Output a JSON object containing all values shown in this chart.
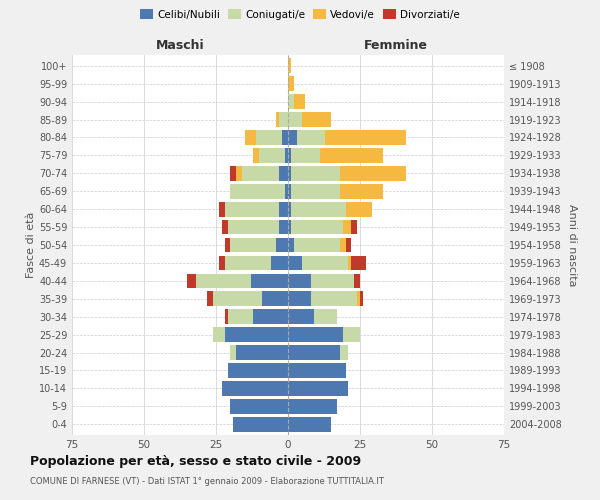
{
  "age_groups": [
    "0-4",
    "5-9",
    "10-14",
    "15-19",
    "20-24",
    "25-29",
    "30-34",
    "35-39",
    "40-44",
    "45-49",
    "50-54",
    "55-59",
    "60-64",
    "65-69",
    "70-74",
    "75-79",
    "80-84",
    "85-89",
    "90-94",
    "95-99",
    "100+"
  ],
  "birth_years": [
    "2004-2008",
    "1999-2003",
    "1994-1998",
    "1989-1993",
    "1984-1988",
    "1979-1983",
    "1974-1978",
    "1969-1973",
    "1964-1968",
    "1959-1963",
    "1954-1958",
    "1949-1953",
    "1944-1948",
    "1939-1943",
    "1934-1938",
    "1929-1933",
    "1924-1928",
    "1919-1923",
    "1914-1918",
    "1909-1913",
    "≤ 1908"
  ],
  "maschi": {
    "celibi": [
      19,
      20,
      23,
      21,
      18,
      22,
      12,
      9,
      13,
      6,
      4,
      3,
      3,
      1,
      3,
      1,
      2,
      0,
      0,
      0,
      0
    ],
    "coniugati": [
      0,
      0,
      0,
      0,
      2,
      4,
      9,
      17,
      19,
      16,
      16,
      18,
      19,
      19,
      13,
      9,
      9,
      3,
      0,
      0,
      0
    ],
    "vedovi": [
      0,
      0,
      0,
      0,
      0,
      0,
      0,
      0,
      0,
      0,
      0,
      0,
      0,
      0,
      2,
      2,
      4,
      1,
      0,
      0,
      0
    ],
    "divorziati": [
      0,
      0,
      0,
      0,
      0,
      0,
      1,
      2,
      3,
      2,
      2,
      2,
      2,
      0,
      2,
      0,
      0,
      0,
      0,
      0,
      0
    ]
  },
  "femmine": {
    "nubili": [
      15,
      17,
      21,
      20,
      18,
      19,
      9,
      8,
      8,
      5,
      2,
      1,
      1,
      1,
      1,
      1,
      3,
      0,
      0,
      0,
      0
    ],
    "coniugate": [
      0,
      0,
      0,
      0,
      3,
      6,
      8,
      16,
      15,
      16,
      16,
      18,
      19,
      17,
      17,
      10,
      10,
      5,
      2,
      0,
      0
    ],
    "vedove": [
      0,
      0,
      0,
      0,
      0,
      0,
      0,
      1,
      0,
      1,
      2,
      3,
      9,
      15,
      23,
      22,
      28,
      10,
      4,
      2,
      1
    ],
    "divorziate": [
      0,
      0,
      0,
      0,
      0,
      0,
      0,
      1,
      2,
      5,
      2,
      2,
      0,
      0,
      0,
      0,
      0,
      0,
      0,
      0,
      0
    ]
  },
  "colors": {
    "celibi": "#4e78b0",
    "coniugati": "#c8d9a8",
    "vedovi": "#f5b942",
    "divorziati": "#c0392b"
  },
  "xlim": 75,
  "title": "Popolazione per età, sesso e stato civile - 2009",
  "subtitle": "COMUNE DI FARNESE (VT) - Dati ISTAT 1° gennaio 2009 - Elaborazione TUTTITALIA.IT",
  "ylabel_left": "Fasce di età",
  "ylabel_right": "Anni di nascita",
  "xlabel_maschi": "Maschi",
  "xlabel_femmine": "Femmine",
  "legend_labels": [
    "Celibi/Nubili",
    "Coniugati/e",
    "Vedovi/e",
    "Divorziati/e"
  ],
  "bg_color": "#f0f0f0",
  "plot_bg": "#ffffff"
}
